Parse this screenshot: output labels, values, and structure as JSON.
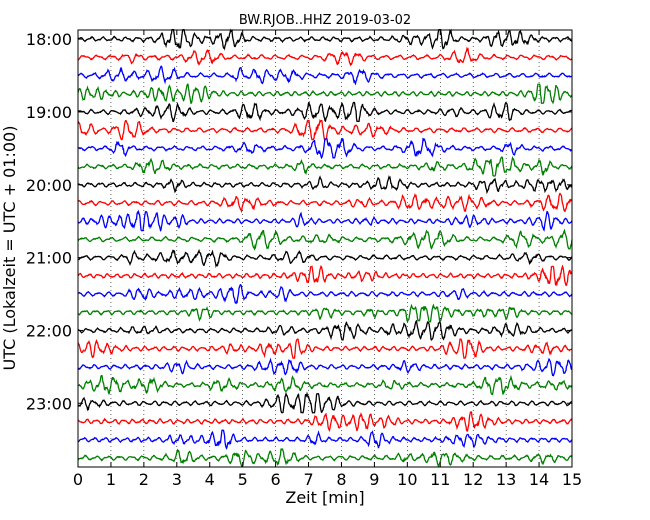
{
  "chart_data": {
    "type": "line",
    "title": "BW.RJOB..HHZ 2019-03-02",
    "xlabel": "Zeit  [min]",
    "ylabel": "UTC (Lokalzeit = UTC + 01:00)",
    "xlim": [
      0,
      15
    ],
    "x_ticks": [
      "0",
      "1",
      "2",
      "3",
      "4",
      "5",
      "6",
      "7",
      "8",
      "9",
      "10",
      "11",
      "12",
      "13",
      "14",
      "15"
    ],
    "y_tick_labels": [
      "18:00",
      "19:00",
      "20:00",
      "21:00",
      "22:00",
      "23:00"
    ],
    "trace_count": 24,
    "trace_interval_min": 15,
    "colors": [
      "#000000",
      "#ff0000",
      "#0000ff",
      "#008000"
    ],
    "grid_x": true,
    "grid_style": "dotted vertical"
  }
}
